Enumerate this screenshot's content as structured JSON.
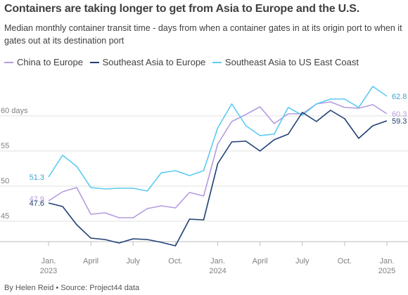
{
  "header": {
    "title": "Containers are taking longer to get from Asia to Europe and the U.S.",
    "subtitle": "Median monthly container transit time - days from when a container gates in at its origin port to when it gates out at its destination port"
  },
  "footer": {
    "credit": "By Helen Reid • Source: Project44 data"
  },
  "chart_data": {
    "type": "line",
    "title": "Containers are taking longer to get from Asia to Europe and the U.S.",
    "subtitle": "Median monthly container transit time - days from when a container gates in at its origin port to when it gates out at its destination port",
    "x": [
      "2023-01",
      "2023-02",
      "2023-03",
      "2023-04",
      "2023-05",
      "2023-06",
      "2023-07",
      "2023-08",
      "2023-09",
      "2023-10",
      "2023-11",
      "2023-12",
      "2024-01",
      "2024-02",
      "2024-03",
      "2024-04",
      "2024-05",
      "2024-06",
      "2024-07",
      "2024-08",
      "2024-09",
      "2024-10",
      "2024-11",
      "2024-12",
      "2025-01"
    ],
    "x_tick_labels": [
      {
        "x": "2023-01",
        "lines": [
          "Jan.",
          "2023"
        ]
      },
      {
        "x": "2023-04",
        "lines": [
          "April"
        ]
      },
      {
        "x": "2023-07",
        "lines": [
          "July"
        ]
      },
      {
        "x": "2023-10",
        "lines": [
          "Oct."
        ]
      },
      {
        "x": "2024-01",
        "lines": [
          "Jan.",
          "2024"
        ]
      },
      {
        "x": "2024-04",
        "lines": [
          "April"
        ]
      },
      {
        "x": "2024-07",
        "lines": [
          "July"
        ]
      },
      {
        "x": "2024-10",
        "lines": [
          "Oct."
        ]
      },
      {
        "x": "2025-01",
        "lines": [
          "Jan.",
          "2025"
        ]
      }
    ],
    "y_ticks": [
      45,
      50,
      55,
      60
    ],
    "y_tick_labels": [
      "45",
      "50",
      "55",
      "60 days"
    ],
    "ylim": [
      42,
      66
    ],
    "grid": true,
    "legend_position": "top",
    "series": [
      {
        "name": "China to Europe",
        "color": "#b49be0",
        "values": [
          47.9,
          49.2,
          49.8,
          46.0,
          46.2,
          45.5,
          45.5,
          46.8,
          47.2,
          46.9,
          49.1,
          48.6,
          56.0,
          59.2,
          60.2,
          61.3,
          58.9,
          60.3,
          60.3,
          61.7,
          62.0,
          61.2,
          61.1,
          61.6,
          60.3
        ],
        "start_label": "47.9",
        "end_label": "60.3"
      },
      {
        "name": "Southeast Asia to Europe",
        "color": "#1f3f73",
        "values": [
          47.6,
          47.1,
          44.5,
          42.6,
          42.4,
          41.9,
          42.5,
          42.4,
          42.0,
          41.5,
          45.3,
          45.2,
          53.2,
          56.3,
          56.4,
          55.0,
          56.6,
          57.4,
          60.5,
          59.2,
          60.8,
          59.6,
          56.8,
          58.6,
          59.3
        ],
        "start_label": "47.6",
        "end_label": "59.3"
      },
      {
        "name": "Southeast Asia to US East Coast",
        "color": "#5ccaf2",
        "values": [
          51.3,
          54.4,
          52.8,
          49.8,
          49.6,
          49.7,
          49.7,
          49.3,
          51.9,
          52.2,
          51.5,
          52.2,
          58.3,
          61.7,
          58.6,
          57.2,
          57.4,
          61.2,
          60.1,
          61.7,
          62.4,
          62.4,
          61.2,
          64.2,
          62.8
        ],
        "start_label": "51.3",
        "end_label": "62.8"
      }
    ]
  }
}
